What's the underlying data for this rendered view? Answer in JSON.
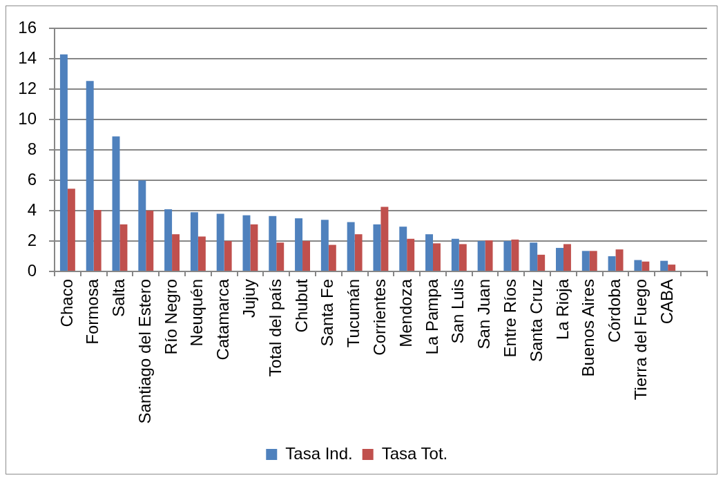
{
  "chart_data": {
    "type": "bar",
    "categories": [
      "Chaco",
      "Formosa",
      "Salta",
      "Santiago del Estero",
      "Río Negro",
      "Neuquén",
      "Catamarca",
      "Jujuy",
      "Total del país",
      "Chubut",
      "Santa Fe",
      "Tucumán",
      "Corrientes",
      "Mendoza",
      "La Pampa",
      "San Luis",
      "San Juan",
      "Entre Ríos",
      "Santa Cruz",
      "La Rioja",
      "Buenos Aires",
      "Córdoba",
      "Tierra del Fuego",
      "CABA",
      null
    ],
    "series": [
      {
        "name": "Tasa Ind.",
        "color": "#4f81bd",
        "values": [
          14.3,
          12.55,
          8.9,
          6.0,
          4.1,
          3.9,
          3.8,
          3.7,
          3.65,
          3.5,
          3.4,
          3.25,
          3.1,
          2.95,
          2.45,
          2.15,
          2.0,
          2.0,
          1.9,
          1.55,
          1.35,
          1.0,
          0.75,
          0.7,
          null
        ]
      },
      {
        "name": "Tasa Tot.",
        "color": "#c0504d",
        "values": [
          5.45,
          4.05,
          3.1,
          4.0,
          2.45,
          2.3,
          2.0,
          3.1,
          1.9,
          2.0,
          1.75,
          2.45,
          4.25,
          2.15,
          1.85,
          1.8,
          2.05,
          2.1,
          1.1,
          1.8,
          1.35,
          1.45,
          0.65,
          0.45,
          null
        ]
      }
    ],
    "ylim": [
      0,
      16
    ],
    "yticks": [
      0,
      2,
      4,
      6,
      8,
      10,
      12,
      14,
      16
    ],
    "grid": "y",
    "legend": "bottom"
  }
}
